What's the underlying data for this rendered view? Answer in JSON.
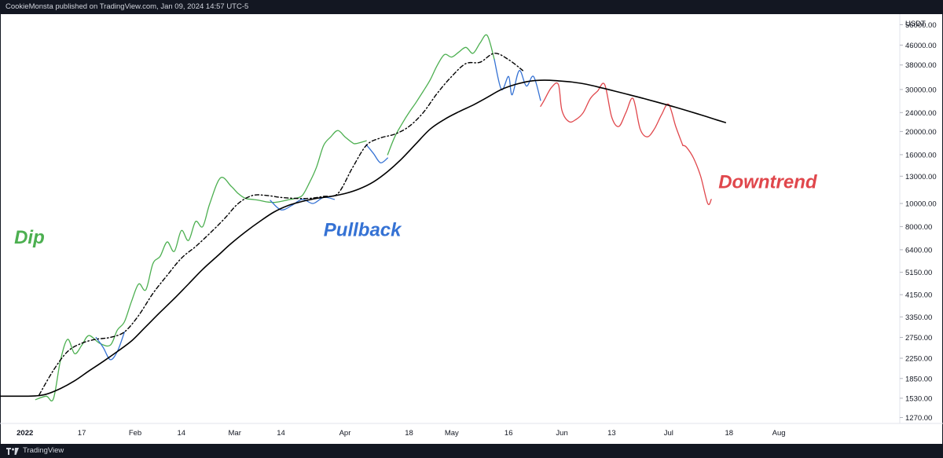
{
  "header": {
    "publisher": "CookieMonsta published on TradingView.com, Jan 09, 2024 14:57 UTC-5"
  },
  "footer": {
    "brand": "TradingView",
    "logo_icon": "tradingview-logo-icon"
  },
  "chart_data": {
    "type": "line",
    "title": "",
    "currency": "USDT",
    "y_scale": "log",
    "ylim": [
      1200,
      62000
    ],
    "y_ticks": [
      56000,
      46000,
      38000,
      30000,
      24000,
      20000,
      16000,
      13000,
      10000,
      8000,
      6400,
      5150,
      4150,
      3350,
      2750,
      2250,
      1850,
      1530,
      1270
    ],
    "y_tick_labels": [
      "56000.00",
      "46000.00",
      "38000.00",
      "30000.00",
      "24000.00",
      "20000.00",
      "16000.00",
      "13000.00",
      "10000.00",
      "8000.00",
      "6400.00",
      "5150.00",
      "4150.00",
      "3350.00",
      "2750.00",
      "2250.00",
      "1850.00",
      "1530.00",
      "1270.00"
    ],
    "x_ticks": [
      "2022",
      "17",
      "Feb",
      "14",
      "Mar",
      "14",
      "Apr",
      "18",
      "May",
      "16",
      "Jun",
      "13",
      "Jul",
      "18",
      "Aug"
    ],
    "x_tick_pos": [
      0,
      16,
      31,
      44,
      59,
      72,
      90,
      108,
      120,
      136,
      151,
      165,
      181,
      198,
      212
    ],
    "xlim": [
      -7,
      246
    ],
    "grid": false,
    "colors": {
      "dip": "#4caf50",
      "pullback": "#3572d4",
      "downtrend": "#e0474c",
      "ma": "#000000"
    },
    "series": [
      {
        "color": "dip",
        "style": "solid",
        "x": [
          3,
          6,
          8,
          10,
          12,
          14,
          16,
          18,
          21,
          24,
          26,
          28,
          30,
          32,
          34,
          36,
          38,
          40,
          42,
          44,
          46,
          48,
          50,
          52,
          55,
          58,
          60,
          62,
          64,
          66,
          68,
          70,
          72,
          74,
          76,
          78,
          80,
          82,
          84,
          86,
          88,
          90,
          92,
          93,
          96
        ],
        "y": [
          1510,
          1560,
          1520,
          2200,
          2700,
          2350,
          2550,
          2800,
          2600,
          2550,
          2950,
          3200,
          3900,
          4600,
          4350,
          5600,
          6000,
          6900,
          6300,
          7700,
          7000,
          8400,
          8000,
          10000,
          12800,
          11800,
          11000,
          10500,
          10400,
          10300,
          10150,
          10100,
          10200,
          10350,
          10500,
          10800,
          12200,
          14200,
          17500,
          19000,
          20200,
          19000,
          18000,
          17800,
          18300
        ]
      },
      {
        "color": "pullback",
        "style": "solid",
        "x": [
          20,
          22,
          24,
          26,
          28
        ],
        "y": [
          2750,
          2500,
          2220,
          2400,
          2900
        ]
      },
      {
        "color": "pullback",
        "style": "solid",
        "x": [
          69,
          72,
          75,
          78,
          81,
          84,
          87
        ],
        "y": [
          10300,
          9400,
          9800,
          10400,
          10000,
          10600,
          10400
        ]
      },
      {
        "color": "pullback",
        "style": "solid",
        "x": [
          96,
          98,
          100,
          102
        ],
        "y": [
          17600,
          16200,
          14800,
          15500
        ]
      },
      {
        "color": "dip",
        "style": "solid",
        "x": [
          102,
          104,
          106,
          108,
          110,
          112,
          114,
          116,
          118,
          120,
          122,
          124,
          126,
          128,
          130,
          132
        ],
        "y": [
          16000,
          19000,
          21500,
          24000,
          26500,
          29500,
          33000,
          38000,
          42000,
          41000,
          43000,
          45000,
          42500,
          47000,
          50500,
          40000
        ]
      },
      {
        "color": "pullback",
        "style": "solid",
        "x": [
          132,
          134,
          136,
          137,
          139,
          141,
          143,
          145
        ],
        "y": [
          40000,
          30000,
          34000,
          28500,
          36000,
          31000,
          34000,
          27000
        ]
      },
      {
        "color": "downtrend",
        "style": "solid",
        "x": [
          145,
          146,
          148,
          150,
          151,
          153,
          155,
          157,
          159,
          161,
          163,
          165,
          167,
          169,
          171,
          173,
          175,
          177,
          179,
          181,
          183,
          185
        ],
        "y": [
          25500,
          27000,
          30500,
          31500,
          24500,
          22000,
          22500,
          24000,
          27500,
          29500,
          31500,
          23000,
          21000,
          24000,
          27500,
          20500,
          19000,
          20500,
          23500,
          26000,
          21000,
          17500
        ]
      },
      {
        "color": "downtrend",
        "style": "solid",
        "x": [
          185,
          186,
          188,
          190,
          192,
          193
        ],
        "y": [
          17500,
          17200,
          15500,
          13000,
          10000,
          10400
        ]
      },
      {
        "color": "ma",
        "style": "solid",
        "x": [
          -7,
          0,
          3,
          6,
          10,
          14,
          18,
          22,
          26,
          30,
          34,
          38,
          42,
          46,
          50,
          54,
          58,
          62,
          66,
          70,
          74,
          78,
          82,
          86,
          90,
          94,
          98,
          102,
          106,
          110,
          114,
          118,
          122,
          126,
          130,
          134,
          138,
          142,
          146,
          150,
          154,
          158,
          162,
          166,
          170,
          174,
          178,
          182,
          186,
          190,
          194,
          197
        ],
        "y": [
          1560,
          1560,
          1565,
          1590,
          1680,
          1810,
          1990,
          2180,
          2400,
          2660,
          3050,
          3500,
          4000,
          4600,
          5300,
          6000,
          6800,
          7600,
          8400,
          9200,
          9800,
          10200,
          10500,
          10700,
          11000,
          11500,
          12300,
          13600,
          15400,
          17800,
          20500,
          22500,
          24200,
          25800,
          27800,
          30000,
          31500,
          32500,
          32800,
          32600,
          32200,
          31500,
          30500,
          29500,
          28500,
          27500,
          26500,
          25500,
          24500,
          23500,
          22500,
          21800
        ]
      },
      {
        "color": "ma",
        "style": "dashed",
        "x": [
          4,
          8,
          12,
          16,
          20,
          24,
          28,
          32,
          36,
          40,
          44,
          48,
          52,
          56,
          60,
          64,
          68,
          72,
          76,
          80,
          84,
          88,
          92,
          96,
          100,
          104,
          108,
          112,
          116,
          120,
          124,
          128,
          132,
          136,
          140
        ],
        "y": [
          1580,
          2000,
          2400,
          2600,
          2700,
          2750,
          2900,
          3400,
          4200,
          5000,
          5900,
          6600,
          7500,
          8600,
          10000,
          10800,
          10800,
          10600,
          10500,
          10500,
          10700,
          11000,
          14000,
          17500,
          18800,
          19500,
          21000,
          24000,
          29000,
          34000,
          38500,
          39000,
          42500,
          40000,
          36000
        ]
      }
    ],
    "annotations": [
      {
        "text": "Dip",
        "color": "dip",
        "x": -3,
        "y": 6800
      },
      {
        "text": "Pullback",
        "color": "pullback",
        "x": 84,
        "y": 7300
      },
      {
        "text": "Downtrend",
        "color": "downtrend",
        "x": 195,
        "y": 11600
      }
    ]
  }
}
